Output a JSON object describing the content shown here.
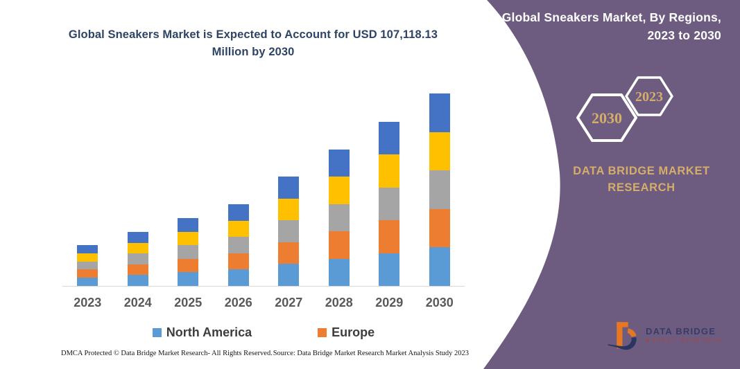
{
  "main": {
    "title": "Global Sneakers Market is Expected to Account for USD 107,118.13 Million by 2030"
  },
  "chart_data": {
    "type": "bar",
    "stacked": true,
    "stack_order": "bottom-to-top",
    "title": "Global Sneakers Market is Expected to Account for USD 107,118.13 Million by 2030",
    "units": "USD Million",
    "categories": [
      "2023",
      "2024",
      "2025",
      "2026",
      "2027",
      "2028",
      "2029",
      "2030"
    ],
    "series": [
      {
        "name": "North America",
        "color": "#5B9BD5",
        "in_legend": true,
        "values": [
          4547,
          6011,
          7552,
          9094,
          12177,
          15182,
          18264,
          21423.63
        ]
      },
      {
        "name": "Europe",
        "color": "#ED7D31",
        "in_legend": true,
        "values": [
          4547,
          6011,
          7552,
          9094,
          12177,
          15182,
          18264,
          21423.63
        ]
      },
      {
        "name": "unlabeled (gray)",
        "color": "#A5A5A5",
        "in_legend": false,
        "values": [
          4547,
          6011,
          7552,
          9094,
          12177,
          15182,
          18264,
          21423.63
        ]
      },
      {
        "name": "unlabeled (yellow)",
        "color": "#FFC000",
        "in_legend": false,
        "values": [
          4547,
          6011,
          7552,
          9094,
          12177,
          15182,
          18264,
          21423.63
        ]
      },
      {
        "name": "unlabeled (dark blue)",
        "color": "#4472C4",
        "in_legend": false,
        "values": [
          4547,
          6011,
          7552,
          9094,
          12177,
          15182,
          18264,
          21423.63
        ]
      }
    ],
    "totals_estimated": [
      22735,
      30055,
      37760,
      45470,
      60885,
      75910,
      91320,
      107118.13
    ],
    "xlabel": "",
    "ylabel": "",
    "y_axis_visible": false,
    "gridlines": false,
    "legend_position": "bottom"
  },
  "legend": {
    "items": [
      {
        "label": "North America",
        "color": "#5B9BD5"
      },
      {
        "label": "Europe",
        "color": "#ED7D31"
      }
    ]
  },
  "footer": {
    "dmca": "DMCA Protected © Data Bridge Market Research-  All Rights Reserved.",
    "source": "Source: Data Bridge Market Research  Market Analysis Study 2023"
  },
  "side_panel": {
    "heading": "Global Sneakers Market, By Regions, 2023 to 2030",
    "hexagons": [
      {
        "label": "2030"
      },
      {
        "label": "2023"
      }
    ],
    "brand": {
      "line1": "DATA BRIDGE MARKET",
      "line2": "RESEARCH"
    },
    "logo": {
      "line1": "DATA BRIDGE",
      "line2": "MARKET RESEARCH"
    }
  },
  "colors": {
    "background": "#ffffff",
    "panel_purple": "#6d5c80",
    "gold": "#d5ad6b",
    "title_blue": "#2e4464",
    "axis_label_gray": "#595959",
    "legend_text": "#3d3d3d",
    "axis_line": "#d9d9d9",
    "hexagon_stroke": "#ffffff",
    "heading_white": "#ffffff",
    "logo_navy": "#2a3560",
    "logo_orange": "#e87722",
    "logo_red_text": "#a04848"
  }
}
